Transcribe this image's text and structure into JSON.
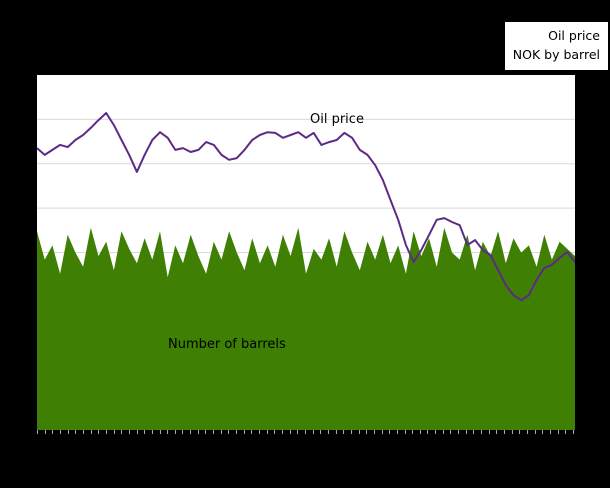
{
  "window": {
    "background_color": "#000000",
    "plot_background_color": "#ffffff"
  },
  "legend": {
    "line1": "Oil price",
    "line2": "NOK by barrel"
  },
  "annotations": {
    "oil_price_label": "Oil price",
    "barrels_label": "Number of barrels"
  },
  "plot": {
    "grid_color": "#d9d9d9",
    "grid_divisions": 8,
    "tick_color": "#aaaaaa"
  },
  "chart_data": {
    "type": "area+line",
    "title": "",
    "xlabel": "",
    "ylabel": "",
    "ylim": [
      0,
      100
    ],
    "x_tick_count": 71,
    "grid": "horizontal",
    "legend_position": "top-right",
    "x_axis_labels": [],
    "y_axis_labels": [],
    "series": [
      {
        "name": "Number of barrels",
        "type": "area",
        "color": "#3e7f04",
        "values": [
          56,
          48,
          52,
          44,
          55,
          50,
          46,
          57,
          49,
          53,
          45,
          56,
          51,
          47,
          54,
          48,
          56,
          43,
          52,
          47,
          55,
          49,
          44,
          53,
          48,
          56,
          50,
          45,
          54,
          47,
          52,
          46,
          55,
          49,
          57,
          44,
          51,
          48,
          54,
          46,
          56,
          50,
          45,
          53,
          48,
          55,
          47,
          52,
          44,
          56,
          49,
          54,
          46,
          57,
          50,
          48,
          55,
          45,
          53,
          49,
          56,
          47,
          54,
          50,
          52,
          46,
          55,
          48,
          53,
          51,
          49
        ]
      },
      {
        "name": "Oil price",
        "type": "line",
        "color": "#5c2b86",
        "values": [
          79.4,
          77.5,
          78.9,
          80.3,
          79.7,
          81.7,
          83.1,
          85.1,
          87.3,
          89.3,
          85.9,
          81.7,
          77.5,
          72.7,
          77.5,
          81.7,
          83.9,
          82.3,
          78.9,
          79.4,
          78.3,
          78.9,
          81.1,
          80.3,
          77.5,
          76.1,
          76.6,
          78.9,
          81.7,
          83.1,
          83.9,
          83.7,
          82.3,
          83.1,
          83.9,
          82.3,
          83.7,
          80.3,
          81.1,
          81.7,
          83.7,
          82.3,
          78.9,
          77.5,
          74.6,
          70.4,
          64.8,
          59.2,
          52.1,
          47.3,
          50.7,
          54.9,
          59.2,
          59.7,
          58.6,
          57.7,
          52.1,
          53.5,
          50.7,
          49.3,
          45.1,
          40.8,
          38.0,
          36.6,
          38.0,
          42.3,
          45.6,
          46.5,
          48.5,
          50.1,
          47.3
        ]
      }
    ]
  }
}
